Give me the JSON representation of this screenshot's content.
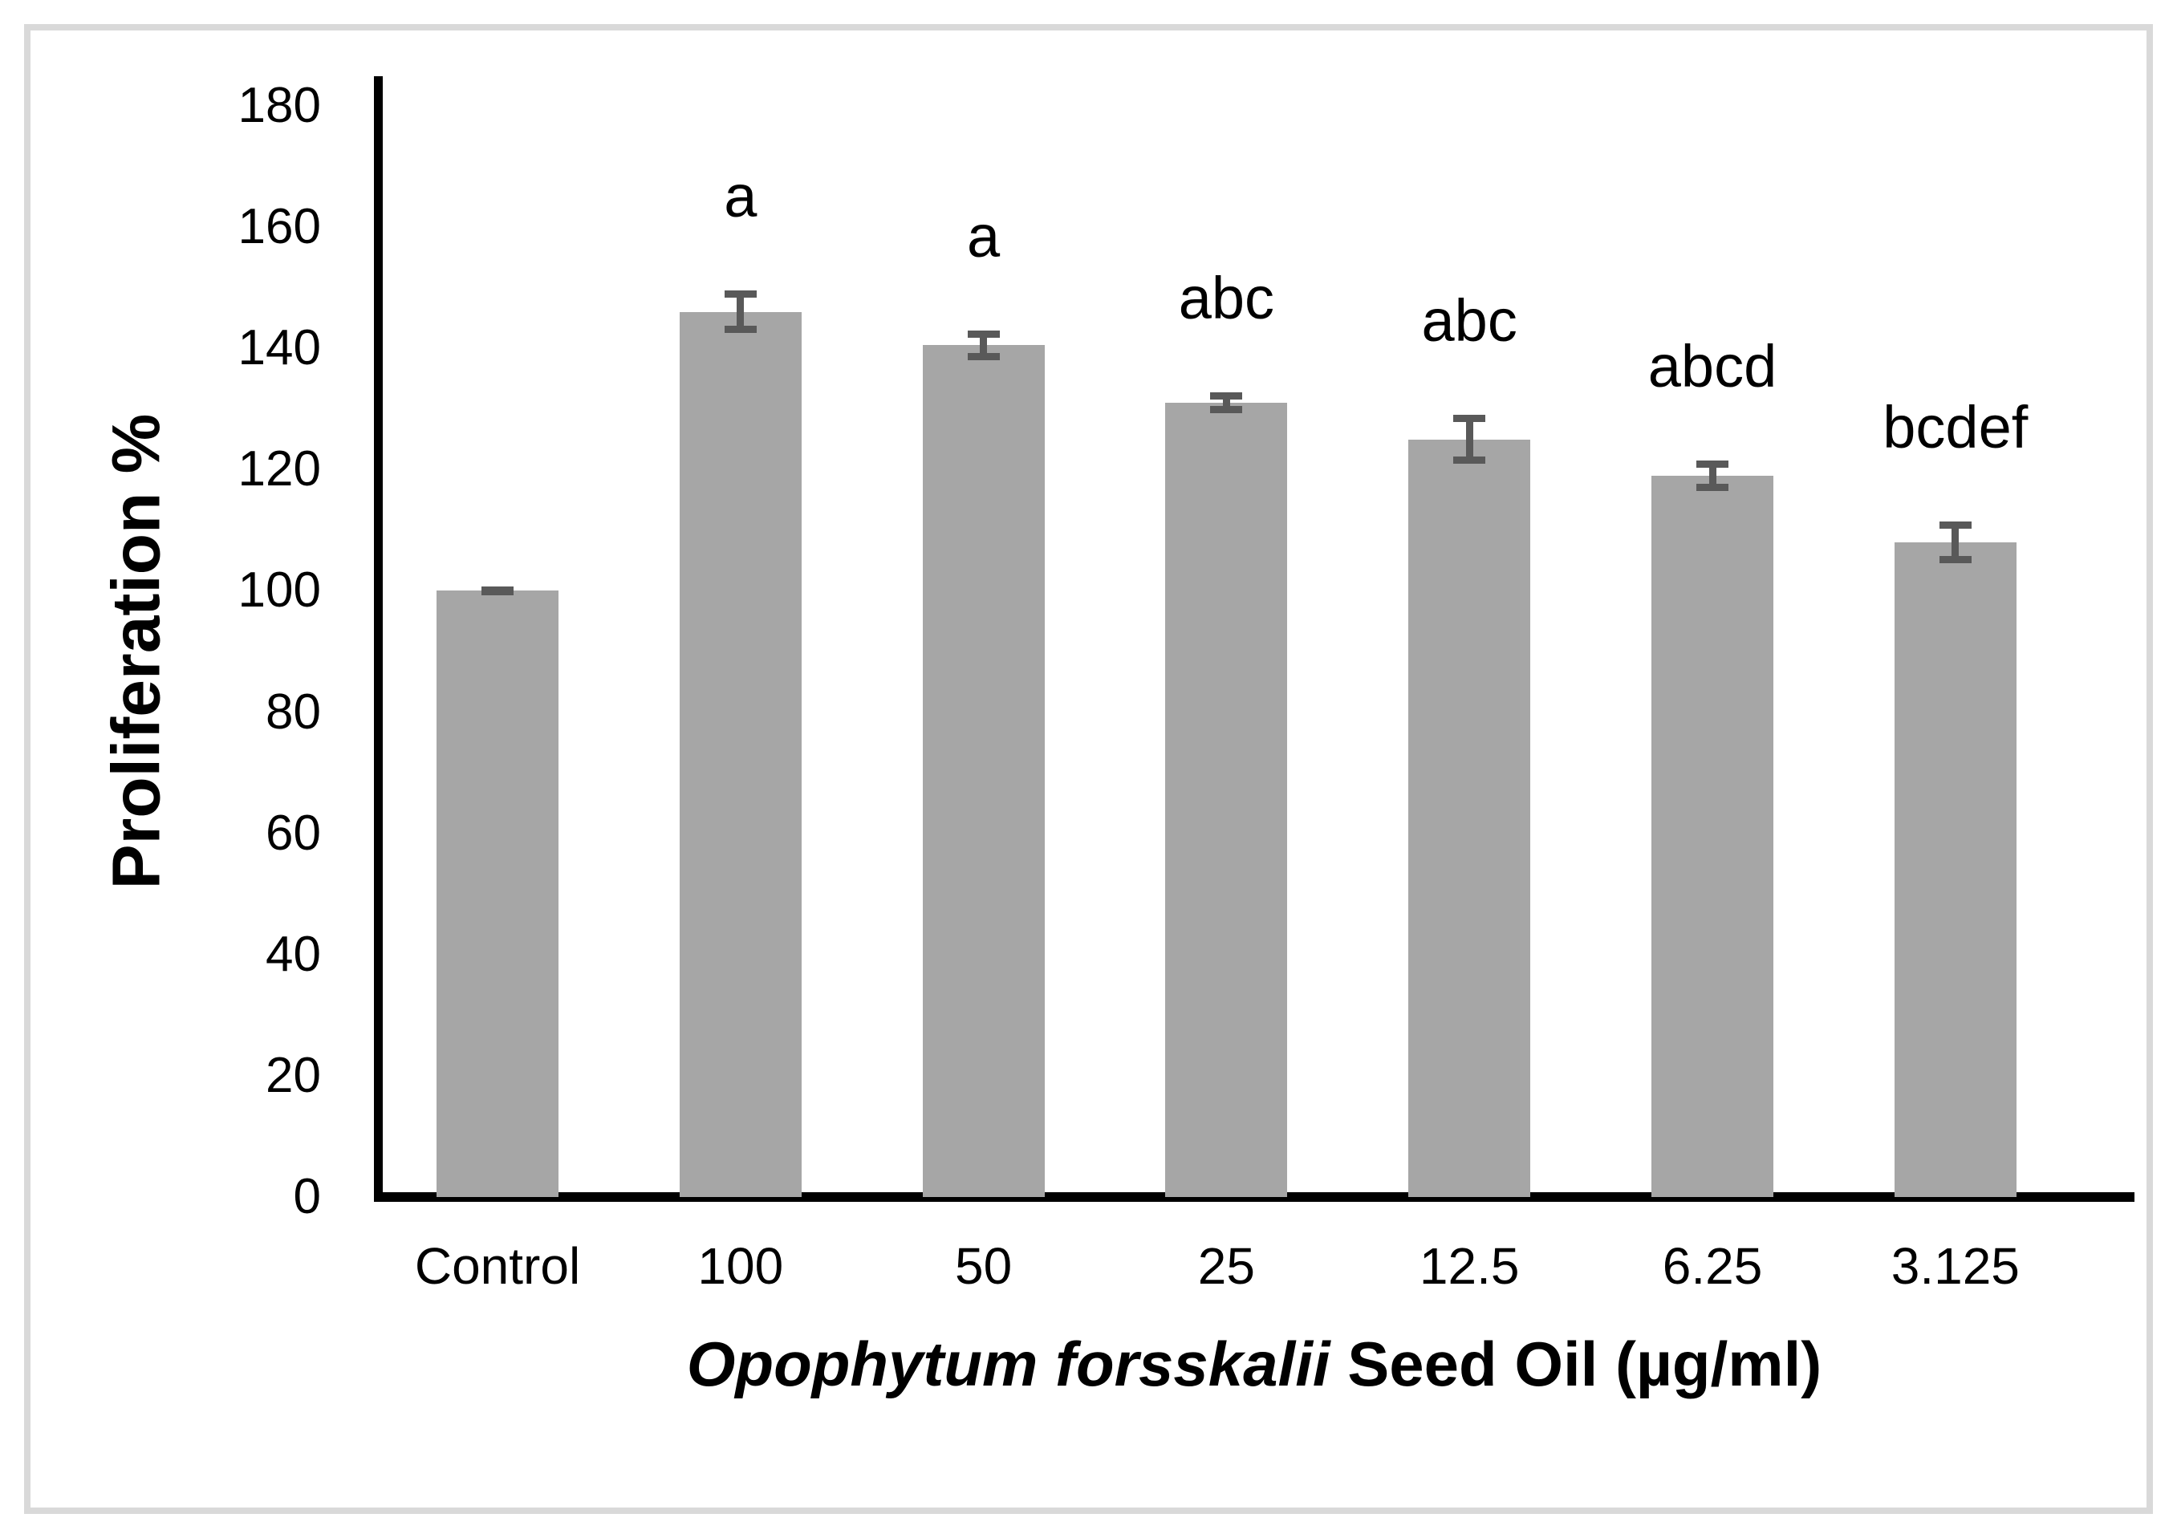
{
  "chart_data": {
    "type": "bar",
    "title": "",
    "ylabel": "Proliferation %",
    "xlabel": "Opophytum forsskalii Seed Oil (µg/ml)",
    "xlabel_italic": "Opophytum forsskalii",
    "xlabel_rest": " Seed Oil (µg/ml)",
    "categories": [
      "Control",
      "100",
      "50",
      "25",
      "12.5",
      "6.25",
      "3.125"
    ],
    "values": [
      100,
      146,
      140.5,
      131,
      125,
      119,
      108
    ],
    "errors": [
      0.5,
      3.5,
      2.5,
      1.7,
      4,
      2.5,
      3.5
    ],
    "sig_letters": [
      "",
      "a",
      "a",
      "abc",
      "abc",
      "abcd",
      "bcdef"
    ],
    "ylim": [
      0,
      180
    ],
    "ytick_step": 20,
    "grid": false,
    "legend": false,
    "bar_color": "#a6a6a6",
    "error_bar_color": "#595959",
    "axis_color": "#000000",
    "border_color": "#d9d9d9"
  }
}
